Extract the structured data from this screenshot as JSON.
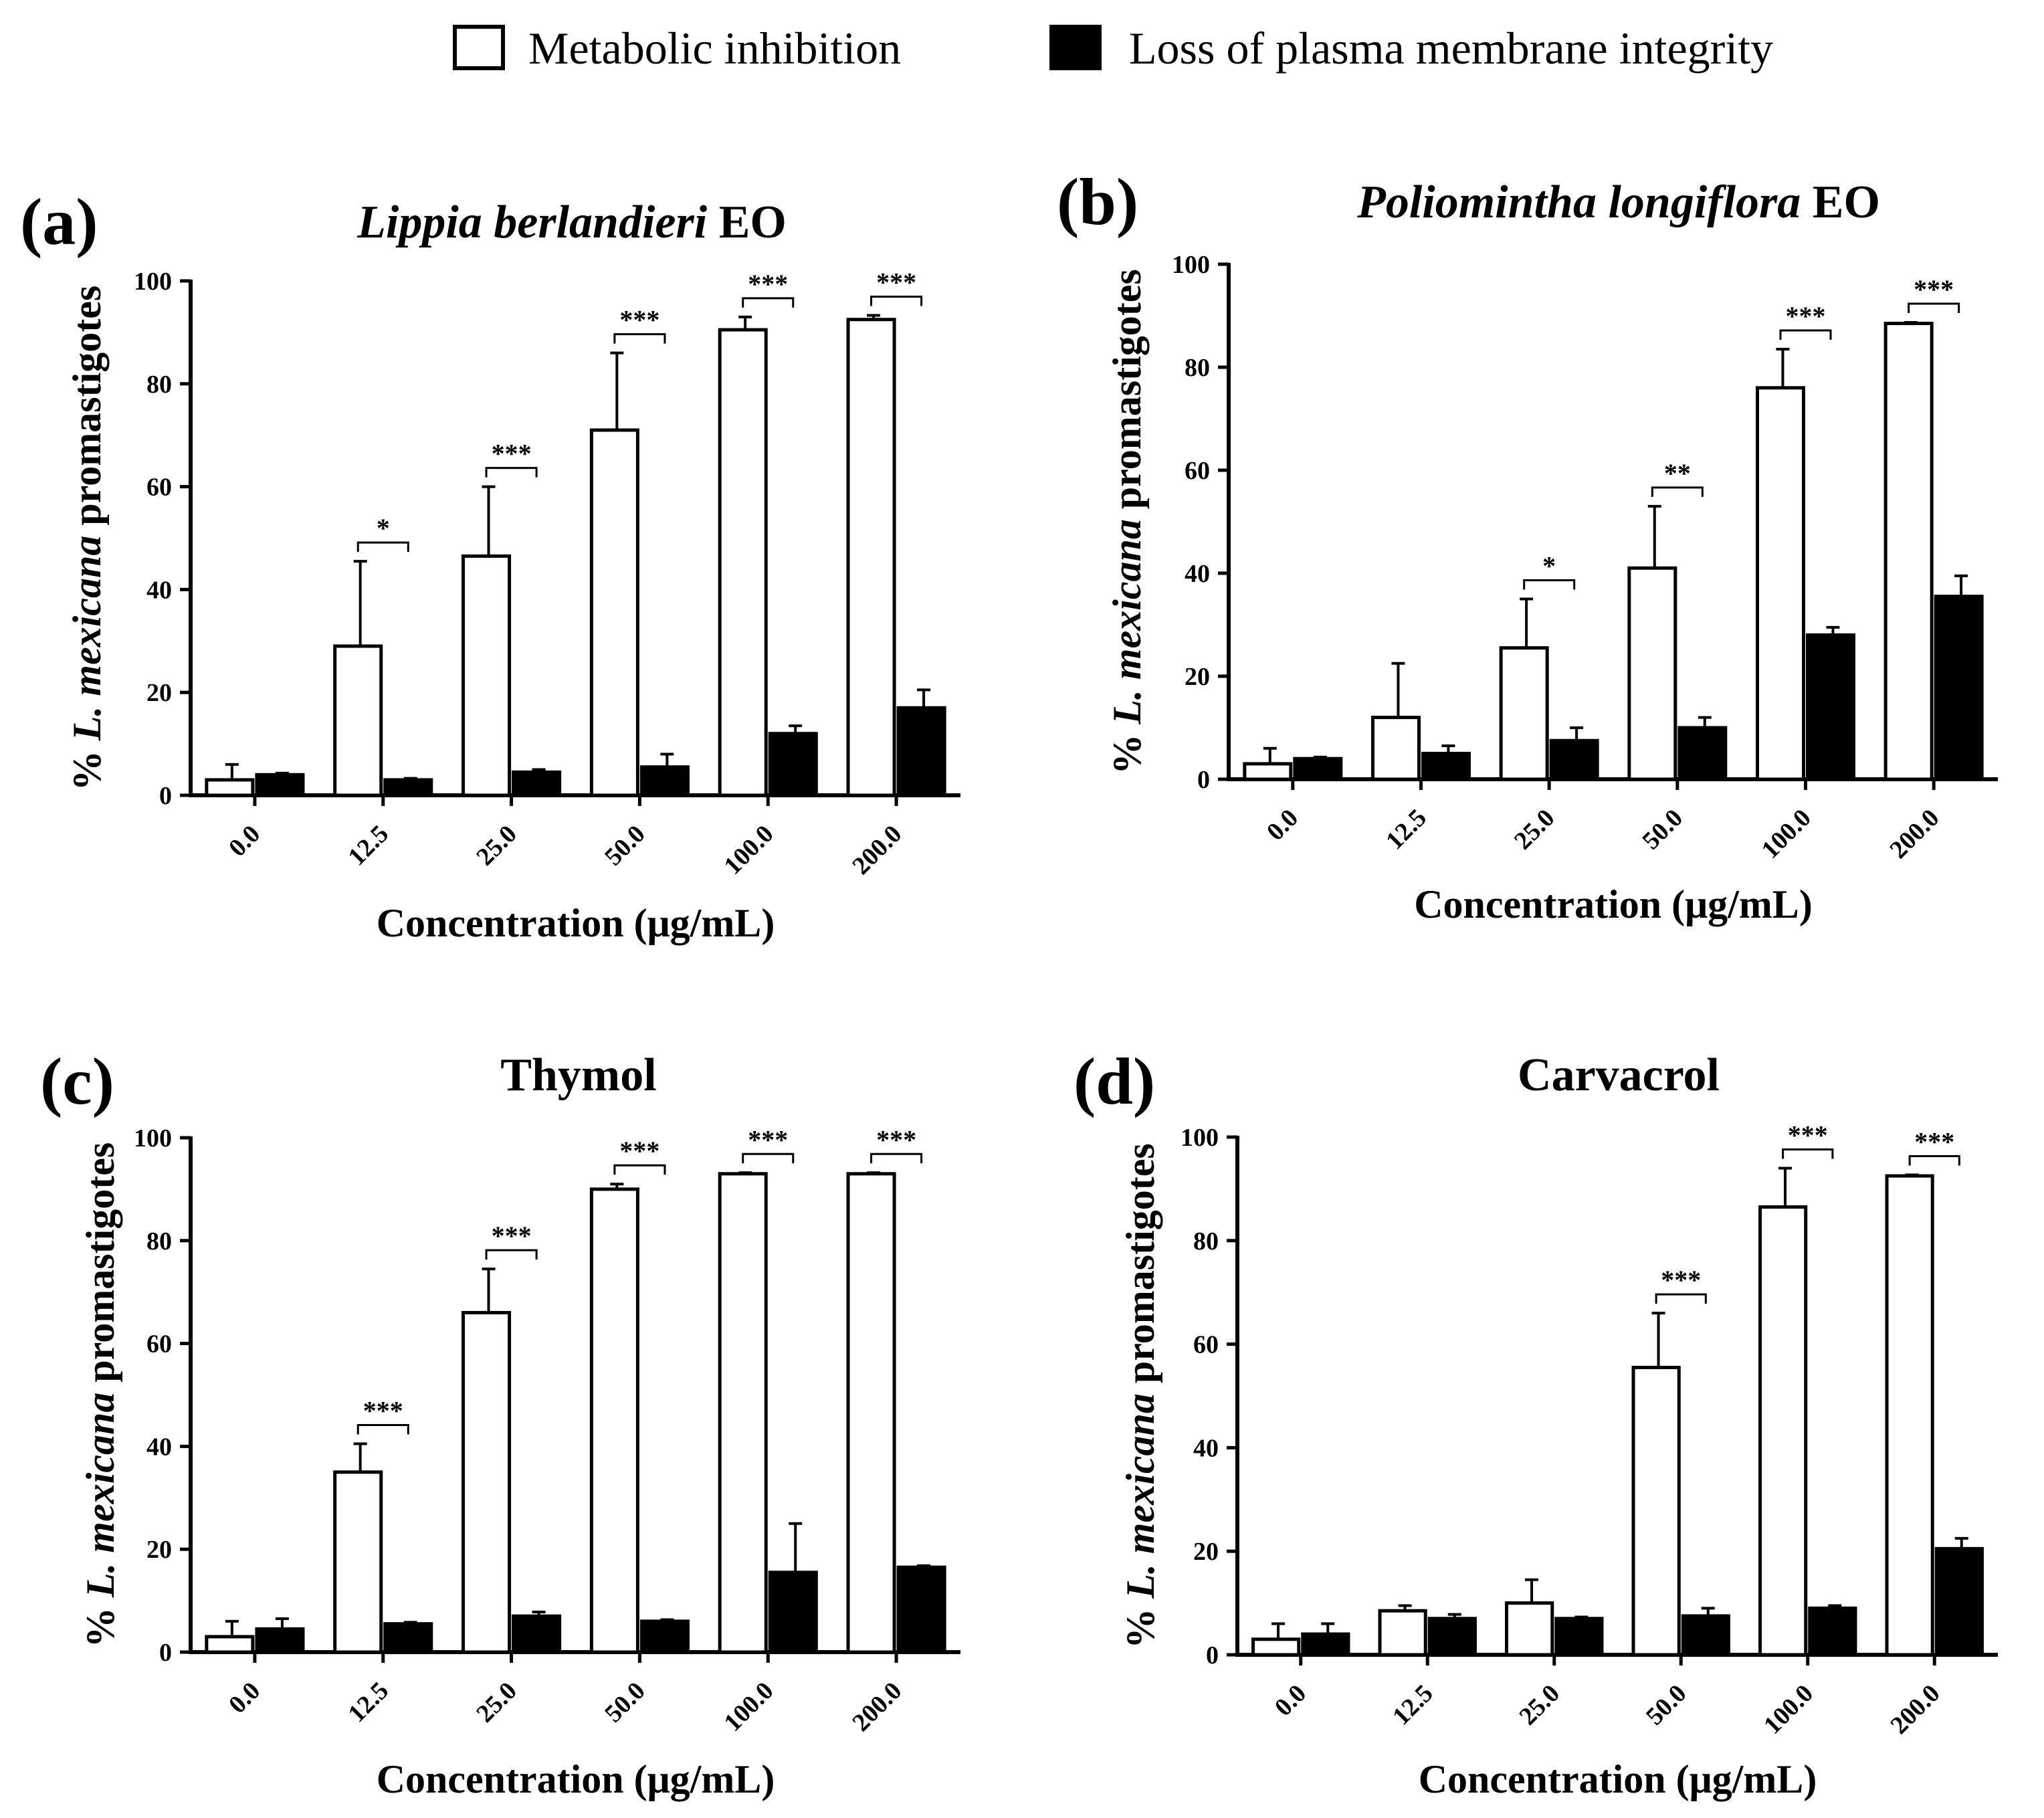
{
  "legend": {
    "series_metabolic": "Metabolic inhibition",
    "series_membrane": "Loss of plasma membrane integrity"
  },
  "colors": {
    "metabolic_fill": "#ffffff",
    "membrane_fill": "#000000",
    "ink": "#000000"
  },
  "chart_data": [
    {
      "type": "bar",
      "panel": "(a)",
      "title_italic": "Lippia berlandieri",
      "title_rest": " EO",
      "xlabel": "Concentration (μg/mL)",
      "ylabel_pre": "% ",
      "ylabel_italic": "L. mexicana",
      "ylabel_post": " promastigotes",
      "ylim": [
        0,
        100
      ],
      "yticks": [
        "0",
        "20",
        "40",
        "60",
        "80",
        "100"
      ],
      "categories": [
        "0.0",
        "12.5",
        "25.0",
        "50.0",
        "100.0",
        "200.0"
      ],
      "series": [
        {
          "name": "Metabolic inhibition",
          "values": [
            3,
            29,
            46.5,
            71,
            90.5,
            92.5
          ],
          "errors": [
            3,
            16.5,
            13.5,
            15,
            2.5,
            0.8
          ]
        },
        {
          "name": "Loss of plasma membrane integrity",
          "values": [
            4,
            3,
            4.5,
            5.5,
            12,
            17
          ],
          "errors": [
            0.3,
            0.3,
            0.5,
            2.5,
            1.5,
            3.5
          ]
        }
      ],
      "significance": [
        "",
        "*",
        "***",
        "***",
        "***",
        "***"
      ]
    },
    {
      "type": "bar",
      "panel": "(b)",
      "title_italic": "Poliomintha longiflora",
      "title_rest": " EO",
      "xlabel": "Concentration (μg/mL)",
      "ylabel_pre": "% ",
      "ylabel_italic": "L. mexicana",
      "ylabel_post": " promastigotes",
      "ylim": [
        0,
        100
      ],
      "yticks": [
        "0",
        "20",
        "40",
        "60",
        "80",
        "100"
      ],
      "categories": [
        "0.0",
        "12.5",
        "25.0",
        "50.0",
        "100.0",
        "200.0"
      ],
      "series": [
        {
          "name": "Metabolic inhibition",
          "values": [
            3,
            12,
            25.5,
            41,
            76,
            88.5
          ],
          "errors": [
            3,
            10.5,
            9.5,
            12,
            7.5,
            0.2
          ]
        },
        {
          "name": "Loss of plasma membrane integrity",
          "values": [
            4,
            5,
            7.5,
            10,
            28,
            35.5
          ],
          "errors": [
            0.3,
            1.5,
            2.5,
            2,
            1.5,
            4
          ]
        }
      ],
      "significance": [
        "",
        "",
        "*",
        "**",
        "***",
        "***"
      ]
    },
    {
      "type": "bar",
      "panel": "(c)",
      "title_italic": "",
      "title_rest": "Thymol",
      "xlabel": "Concentration (μg/mL)",
      "ylabel_pre": "% ",
      "ylabel_italic": "L. mexicana",
      "ylabel_post": " promastigotes",
      "ylim": [
        0,
        100
      ],
      "yticks": [
        "0",
        "20",
        "40",
        "60",
        "80",
        "100"
      ],
      "categories": [
        "0.0",
        "12.5",
        "25.0",
        "50.0",
        "100.0",
        "200.0"
      ],
      "series": [
        {
          "name": "Metabolic inhibition",
          "values": [
            3,
            35,
            66,
            90,
            93,
            93
          ],
          "errors": [
            3,
            5.5,
            8.5,
            1,
            0.2,
            0.2
          ]
        },
        {
          "name": "Loss of plasma membrane integrity",
          "values": [
            4.5,
            5.5,
            7,
            6,
            15.5,
            16.5
          ],
          "errors": [
            2,
            0.3,
            0.8,
            0.3,
            9.5,
            0.3
          ]
        }
      ],
      "significance": [
        "",
        "***",
        "***",
        "***",
        "***",
        "***"
      ]
    },
    {
      "type": "bar",
      "panel": "(d)",
      "title_italic": "",
      "title_rest": "Carvacrol",
      "xlabel": "Concentration (μg/mL)",
      "ylabel_pre": "% ",
      "ylabel_italic": "L. mexicana",
      "ylabel_post": " promastigotes",
      "ylim": [
        0,
        100
      ],
      "yticks": [
        "0",
        "20",
        "40",
        "60",
        "80",
        "100"
      ],
      "categories": [
        "0.0",
        "12.5",
        "25.0",
        "50.0",
        "100.0",
        "200.0"
      ],
      "series": [
        {
          "name": "Metabolic inhibition",
          "values": [
            3,
            8.5,
            10,
            55.5,
            86.5,
            92.5
          ],
          "errors": [
            3,
            1,
            4.5,
            10.5,
            7.5,
            0.2
          ]
        },
        {
          "name": "Loss of plasma membrane integrity",
          "values": [
            4,
            7,
            7,
            7.5,
            9,
            20.5
          ],
          "errors": [
            2,
            0.8,
            0.3,
            1.5,
            0.5,
            2
          ]
        }
      ],
      "significance": [
        "",
        "",
        "",
        "***",
        "***",
        "***"
      ]
    }
  ]
}
